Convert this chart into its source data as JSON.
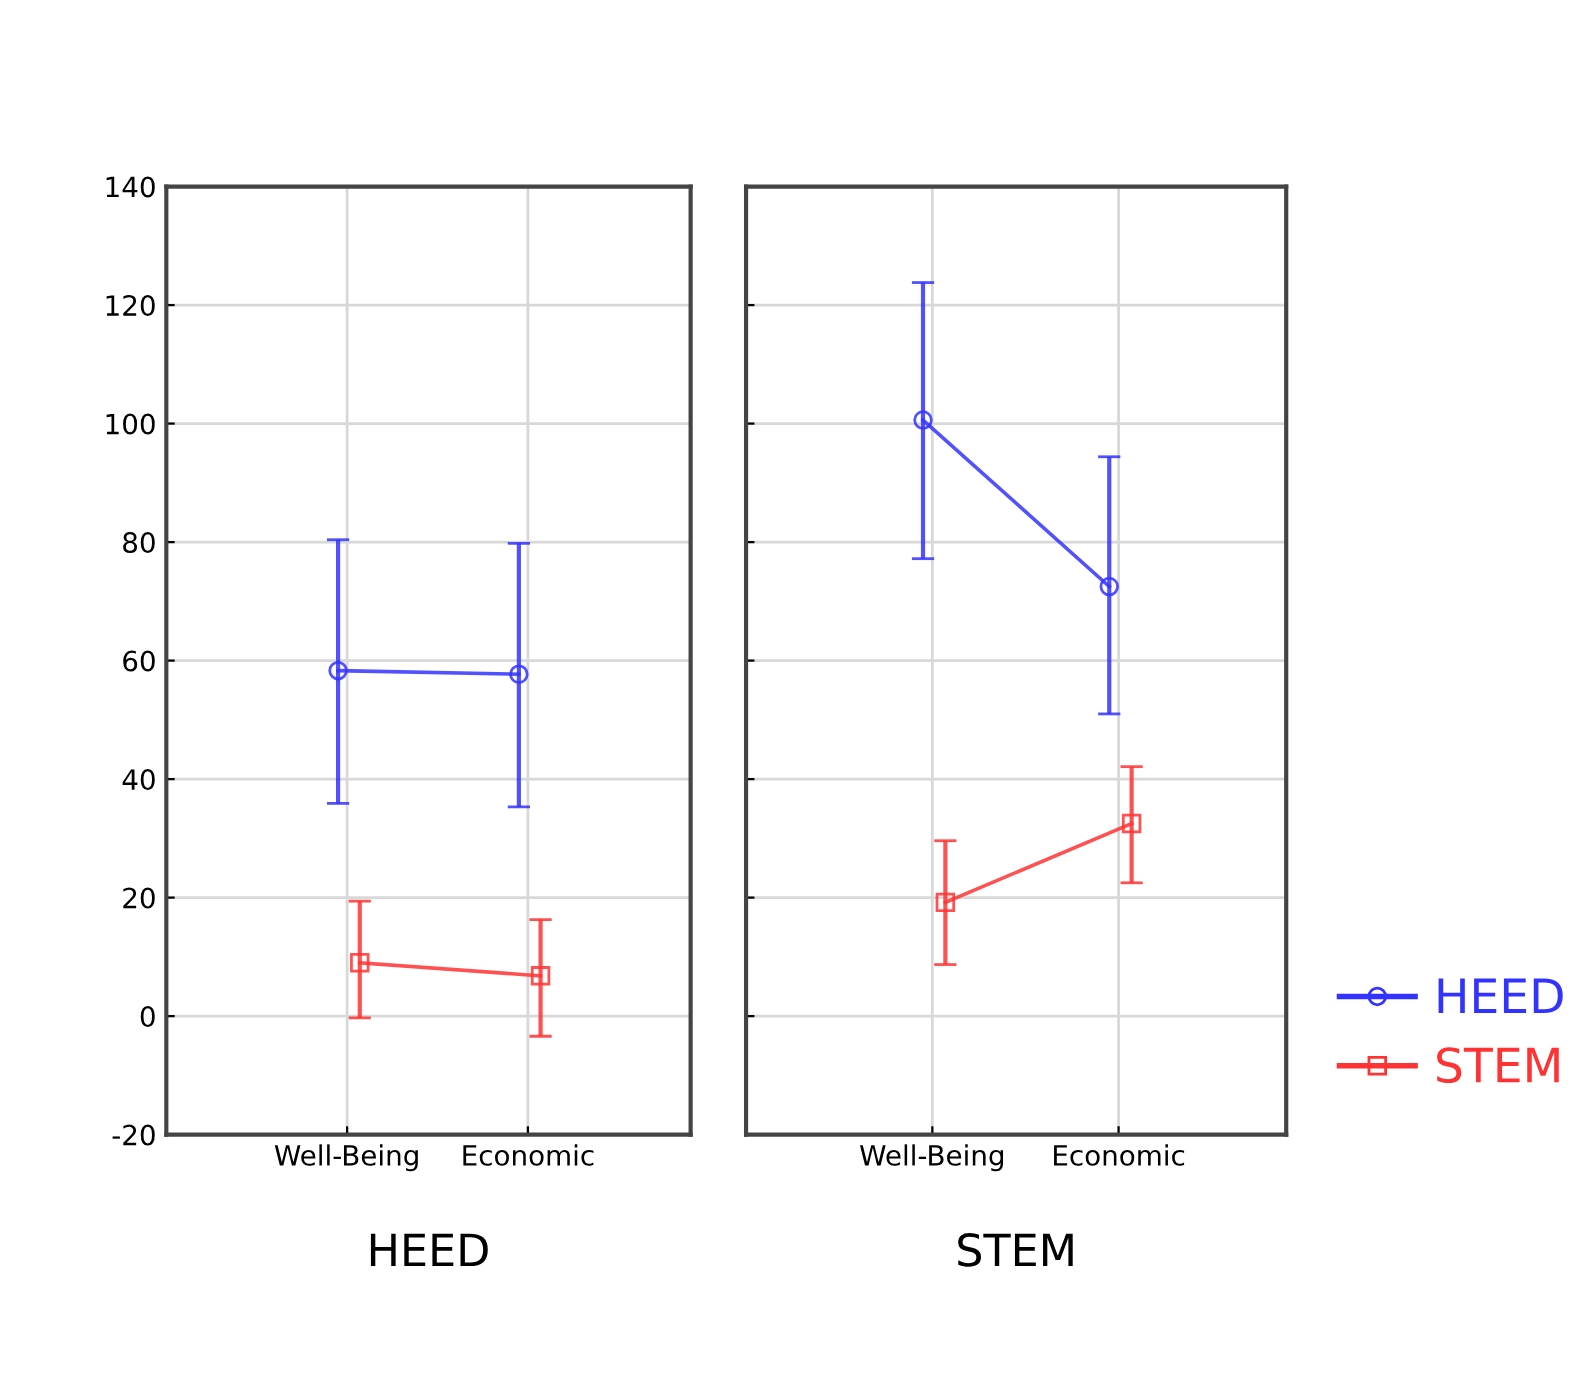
{
  "chart_data": [
    {
      "type": "line",
      "xlabel": "HEED",
      "categories": [
        "Well-Being",
        "Economic"
      ],
      "ylim": [
        -20,
        140
      ],
      "yticks": [
        -20,
        0,
        20,
        40,
        60,
        80,
        100,
        120,
        140
      ],
      "grid": true,
      "tick_labels": "xy",
      "series": [
        {
          "color": "#3333ff",
          "marker": "circle",
          "values": [
            58.3,
            57.7
          ],
          "errors": [
            [
              35.9,
              80.4
            ],
            [
              35.3,
              79.8
            ]
          ]
        },
        {
          "color": "#ff3333",
          "marker": "square",
          "values": [
            9.0,
            6.8
          ],
          "errors": [
            [
              -0.3,
              19.4
            ],
            [
              -3.4,
              16.3
            ]
          ]
        }
      ]
    },
    {
      "type": "line",
      "xlabel": "STEM",
      "categories": [
        "Well-Being",
        "Economic"
      ],
      "ylim": [
        -20,
        140
      ],
      "yticks": [
        -20,
        0,
        20,
        40,
        60,
        80,
        100,
        120,
        140
      ],
      "grid": true,
      "tick_labels": "x",
      "legend": "right",
      "series": [
        {
          "name": "HEED",
          "color": "#3333ff",
          "marker": "circle",
          "values": [
            100.6,
            72.5
          ],
          "errors": [
            [
              77.2,
              123.8
            ],
            [
              51.0,
              94.4
            ]
          ]
        },
        {
          "name": "STEM",
          "color": "#ff3333",
          "marker": "square",
          "values": [
            19.2,
            32.5
          ],
          "errors": [
            [
              8.7,
              29.6
            ],
            [
              22.5,
              42.1
            ]
          ]
        }
      ]
    }
  ]
}
